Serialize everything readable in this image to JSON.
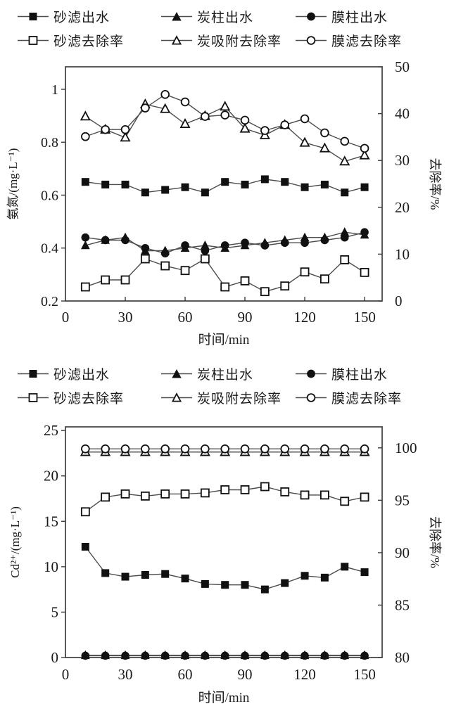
{
  "legend": {
    "items": [
      {
        "label": "砂滤出水",
        "marker": "filled-square"
      },
      {
        "label": "炭柱出水",
        "marker": "filled-triangle"
      },
      {
        "label": "膜柱出水",
        "marker": "filled-circle"
      },
      {
        "label": "砂滤去除率",
        "marker": "open-square"
      },
      {
        "label": "炭吸附去除率",
        "marker": "open-triangle"
      },
      {
        "label": "膜滤去除率",
        "marker": "open-circle"
      }
    ]
  },
  "colors": {
    "marker": "#111111",
    "line": "#4d4d4d",
    "axis": "#3d3d3d",
    "text": "#1a1a1a",
    "background": "#ffffff"
  },
  "chart_data": [
    {
      "type": "line",
      "title": "",
      "x": [
        10,
        20,
        30,
        40,
        50,
        60,
        70,
        80,
        90,
        100,
        110,
        120,
        130,
        140,
        150
      ],
      "xlabel": "时间/min",
      "xticks": [
        0,
        30,
        60,
        90,
        120,
        150
      ],
      "xlim": [
        0,
        158.8
      ],
      "grid": false,
      "legend_position": "top",
      "left_axis": {
        "label": "氨氮/(mg·L⁻¹)",
        "ticks": [
          0.2,
          0.4,
          0.6,
          0.8,
          1
        ],
        "lim": [
          0.2,
          1.085
        ]
      },
      "right_axis": {
        "label": "去除率/%",
        "ticks": [
          0,
          10,
          20,
          30,
          40,
          50
        ],
        "lim": [
          0,
          50
        ]
      },
      "series": [
        {
          "name": "砂滤出水",
          "marker": "filled-square",
          "axis": "left",
          "values": [
            0.65,
            0.64,
            0.64,
            0.61,
            0.62,
            0.63,
            0.61,
            0.65,
            0.64,
            0.66,
            0.65,
            0.63,
            0.64,
            0.61,
            0.63
          ]
        },
        {
          "name": "炭柱出水",
          "marker": "filled-triangle",
          "axis": "left",
          "values": [
            0.41,
            0.43,
            0.44,
            0.39,
            0.39,
            0.4,
            0.41,
            0.4,
            0.41,
            0.42,
            0.43,
            0.44,
            0.44,
            0.46,
            0.45
          ]
        },
        {
          "name": "膜柱出水",
          "marker": "filled-circle",
          "axis": "left",
          "values": [
            0.44,
            0.43,
            0.43,
            0.4,
            0.38,
            0.41,
            0.39,
            0.41,
            0.42,
            0.41,
            0.42,
            0.42,
            0.43,
            0.44,
            0.46
          ]
        },
        {
          "name": "砂滤去除率",
          "marker": "open-square",
          "axis": "right",
          "values": [
            3.0,
            4.5,
            4.5,
            9.0,
            7.5,
            6.5,
            9.0,
            3.0,
            4.3,
            2.0,
            3.2,
            6.2,
            4.7,
            8.8,
            6.1
          ]
        },
        {
          "name": "炭吸附去除率",
          "marker": "open-triangle",
          "axis": "right",
          "values": [
            39.4,
            36.6,
            34.9,
            42.0,
            41.0,
            37.8,
            39.5,
            41.5,
            36.8,
            35.4,
            37.6,
            33.8,
            32.6,
            29.8,
            31.1
          ]
        },
        {
          "name": "膜滤去除率",
          "marker": "open-circle",
          "axis": "right",
          "values": [
            35.1,
            36.6,
            36.6,
            41.2,
            44.1,
            42.5,
            39.4,
            39.7,
            38.6,
            36.4,
            37.6,
            38.9,
            35.9,
            34.1,
            32.6
          ]
        }
      ]
    },
    {
      "type": "line",
      "title": "",
      "x": [
        10,
        20,
        30,
        40,
        50,
        60,
        70,
        80,
        90,
        100,
        110,
        120,
        130,
        140,
        150
      ],
      "xlabel": "时间/min",
      "xticks": [
        0,
        30,
        60,
        90,
        120,
        150
      ],
      "xlim": [
        0,
        158.8
      ],
      "grid": false,
      "legend_position": "top",
      "left_axis": {
        "label": "Cd²⁺/(mg·L⁻¹)",
        "ticks": [
          0,
          5,
          10,
          15,
          20,
          25
        ],
        "lim": [
          0,
          25.4
        ]
      },
      "right_axis": {
        "label": "去除率/%",
        "ticks": [
          80,
          85,
          90,
          95,
          100
        ],
        "lim": [
          80,
          102
        ]
      },
      "series": [
        {
          "name": "砂滤出水",
          "marker": "filled-square",
          "axis": "left",
          "values": [
            12.2,
            9.3,
            8.9,
            9.1,
            9.2,
            8.7,
            8.1,
            8.0,
            8.0,
            7.5,
            8.2,
            9.0,
            8.8,
            10.0,
            9.4
          ]
        },
        {
          "name": "炭柱出水",
          "marker": "filled-triangle",
          "axis": "left",
          "values": [
            0.25,
            0.25,
            0.25,
            0.25,
            0.25,
            0.25,
            0.25,
            0.25,
            0.25,
            0.25,
            0.25,
            0.25,
            0.25,
            0.25,
            0.25
          ]
        },
        {
          "name": "膜柱出水",
          "marker": "filled-circle",
          "axis": "left",
          "values": [
            0.2,
            0.2,
            0.2,
            0.2,
            0.2,
            0.2,
            0.2,
            0.2,
            0.2,
            0.2,
            0.2,
            0.2,
            0.2,
            0.2,
            0.2
          ]
        },
        {
          "name": "砂滤去除率",
          "marker": "open-square",
          "axis": "right",
          "values": [
            93.9,
            95.3,
            95.6,
            95.4,
            95.6,
            95.6,
            95.7,
            96.0,
            96.0,
            96.3,
            95.8,
            95.5,
            95.5,
            94.9,
            95.3
          ]
        },
        {
          "name": "炭吸附去除率",
          "marker": "open-triangle",
          "axis": "right",
          "values": [
            99.6,
            99.6,
            99.6,
            99.6,
            99.6,
            99.6,
            99.6,
            99.6,
            99.6,
            99.6,
            99.6,
            99.6,
            99.6,
            99.6,
            99.6
          ]
        },
        {
          "name": "膜滤去除率",
          "marker": "open-circle",
          "axis": "right",
          "values": [
            99.9,
            99.9,
            99.9,
            99.9,
            99.9,
            99.9,
            99.9,
            99.9,
            99.9,
            99.9,
            99.9,
            99.9,
            99.9,
            99.9,
            99.9
          ]
        }
      ]
    }
  ]
}
